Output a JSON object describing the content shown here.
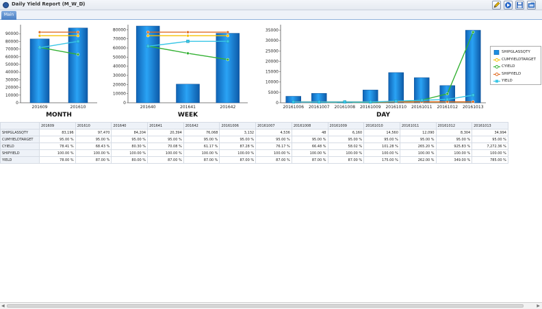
{
  "window": {
    "title": "Daily Yield Report (M_W_D)",
    "star_icon": "star-icon"
  },
  "toolbar": {
    "icons": [
      "edit-icon",
      "play-icon",
      "save-icon",
      "folder-icon"
    ]
  },
  "tabs": [
    {
      "label": "Main"
    }
  ],
  "colors": {
    "bar": "#1e8ee0",
    "cumyieldtarget": "#f5c000",
    "cyield": "#33b133",
    "shipyield": "#e06b20",
    "yield": "#39c6e6"
  },
  "chart_data": [
    {
      "type": "bar",
      "title": "MONTH",
      "categories": [
        "201609",
        "201610"
      ],
      "ylim": [
        0,
        100000
      ],
      "yticks": [
        0,
        10000,
        20000,
        30000,
        40000,
        50000,
        60000,
        70000,
        80000,
        90000
      ],
      "series": [
        {
          "name": "SHIPGLASSQTY",
          "kind": "bar",
          "values": [
            83196,
            97470
          ]
        },
        {
          "name": "CUMYIELDTARGET",
          "kind": "line",
          "values": [
            95.0,
            95.0
          ]
        },
        {
          "name": "CYIELD",
          "kind": "line",
          "values": [
            78.41,
            68.43
          ]
        },
        {
          "name": "SHIPYIELD",
          "kind": "line",
          "values": [
            100.0,
            100.0
          ]
        },
        {
          "name": "YIELD",
          "kind": "line",
          "values": [
            78.0,
            87.0
          ]
        }
      ]
    },
    {
      "type": "bar",
      "title": "WEEK",
      "categories": [
        "201640",
        "201641",
        "201642"
      ],
      "ylim": [
        0,
        84000
      ],
      "yticks": [
        0,
        10000,
        20000,
        30000,
        40000,
        50000,
        60000,
        70000,
        80000
      ],
      "series": [
        {
          "name": "SHIPGLASSQTY",
          "kind": "bar",
          "values": [
            84204,
            20394,
            76068
          ]
        },
        {
          "name": "CUMYIELDTARGET",
          "kind": "line",
          "values": [
            95.0,
            95.0,
            95.0
          ]
        },
        {
          "name": "CYIELD",
          "kind": "line",
          "values": [
            80.3,
            70.08,
            61.17
          ]
        },
        {
          "name": "SHIPYIELD",
          "kind": "line",
          "values": [
            100.0,
            100.0,
            100.0
          ]
        },
        {
          "name": "YIELD",
          "kind": "line",
          "values": [
            80.0,
            87.0,
            87.0
          ]
        }
      ]
    },
    {
      "type": "bar",
      "title": "DAY",
      "categories": [
        "20161006",
        "20161007",
        "20161008",
        "20161009",
        "20161010",
        "20161011",
        "20161012",
        "20161013"
      ],
      "ylim": [
        0,
        37000
      ],
      "yticks": [
        0,
        5000,
        10000,
        15000,
        20000,
        25000,
        30000,
        35000
      ],
      "legend": "right",
      "series": [
        {
          "name": "SHIPGLASSQTY",
          "kind": "bar",
          "values": [
            3132,
            4536,
            48,
            6160,
            14560,
            12090,
            8304,
            34994
          ]
        },
        {
          "name": "CUMYIELDTARGET",
          "kind": "line",
          "values": [
            95.0,
            95.0,
            95.0,
            95.0,
            95.0,
            95.0,
            95.0,
            95.0
          ]
        },
        {
          "name": "CYIELD",
          "kind": "line",
          "values": [
            87.28,
            76.17,
            66.48,
            58.02,
            101.28,
            265.2,
            925.83,
            7272.36
          ]
        },
        {
          "name": "SHIPYIELD",
          "kind": "line",
          "values": [
            100.0,
            100.0,
            100.0,
            100.0,
            100.0,
            100.0,
            100.0,
            100.0
          ]
        },
        {
          "name": "YIELD",
          "kind": "line",
          "values": [
            87.0,
            87.0,
            87.0,
            87.0,
            175.0,
            262.0,
            349.0,
            785.0
          ]
        }
      ]
    }
  ],
  "table": {
    "columns": [
      "201609",
      "201610",
      "201640",
      "201641",
      "201642",
      "20161006",
      "20161007",
      "20161008",
      "20161009",
      "20161010",
      "20161011",
      "20161012",
      "20161013"
    ],
    "rows": [
      {
        "label": "SHIPGLASSQTY",
        "cells": [
          "83,196",
          "97,470",
          "84,204",
          "20,394",
          "76,068",
          "3,132",
          "4,536",
          "48",
          "6,160",
          "14,560",
          "12,090",
          "8,304",
          "34,994"
        ]
      },
      {
        "label": "CUMYIELDTARGET",
        "cells": [
          "95.00 %",
          "95.00 %",
          "95.00 %",
          "95.00 %",
          "95.00 %",
          "95.00 %",
          "95.00 %",
          "95.00 %",
          "95.00 %",
          "95.00 %",
          "95.00 %",
          "95.00 %",
          "95.00 %"
        ]
      },
      {
        "label": "CYIELD",
        "cells": [
          "78.41 %",
          "68.43 %",
          "80.30 %",
          "70.08 %",
          "61.17 %",
          "87.28 %",
          "76.17 %",
          "66.48 %",
          "58.02 %",
          "101.28 %",
          "265.20 %",
          "925.83 %",
          "7,272.36 %"
        ]
      },
      {
        "label": "SHIPYIELD",
        "cells": [
          "100.00 %",
          "100.00 %",
          "100.00 %",
          "100.00 %",
          "100.00 %",
          "100.00 %",
          "100.00 %",
          "100.00 %",
          "100.00 %",
          "100.00 %",
          "100.00 %",
          "100.00 %",
          "100.00 %"
        ]
      },
      {
        "label": "YIELD",
        "cells": [
          "78.00 %",
          "87.00 %",
          "80.00 %",
          "87.00 %",
          "87.00 %",
          "87.00 %",
          "87.00 %",
          "87.00 %",
          "87.00 %",
          "175.00 %",
          "262.00 %",
          "349.00 %",
          "785.00 %"
        ]
      }
    ]
  }
}
